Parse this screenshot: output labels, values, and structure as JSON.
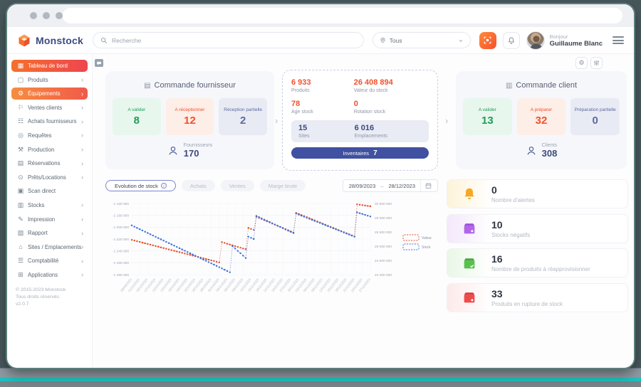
{
  "header": {
    "search_placeholder": "Recherche",
    "site_filter_value": "Tous",
    "greeting": "Bonjour",
    "user_name": "Guillaume Blanc",
    "logo_text": "Monstock"
  },
  "sidebar": {
    "items": [
      {
        "label": "Tableau de bord",
        "icon": "▦"
      },
      {
        "label": "Produits",
        "icon": "▢"
      },
      {
        "label": "Équipements",
        "icon": "⚙"
      },
      {
        "label": "Ventes clients",
        "icon": "⚐"
      },
      {
        "label": "Achats fournisseurs",
        "icon": "☷"
      },
      {
        "label": "Requêtes",
        "icon": "◎"
      },
      {
        "label": "Production",
        "icon": "⚒"
      },
      {
        "label": "Réservations",
        "icon": "▤"
      },
      {
        "label": "Prêts/Locations",
        "icon": "⊙"
      },
      {
        "label": "Scan direct",
        "icon": "▣"
      },
      {
        "label": "Stocks",
        "icon": "▥"
      },
      {
        "label": "Impression",
        "icon": "✎"
      },
      {
        "label": "Rapport",
        "icon": "▧"
      },
      {
        "label": "Sites / Emplacements",
        "icon": "⌂"
      },
      {
        "label": "Comptabilité",
        "icon": "☰"
      },
      {
        "label": "Applications",
        "icon": "⊞"
      }
    ],
    "footer_lines": [
      "© 2015-2023 Monstock",
      "Tous droits réservés.",
      "v2.0.7"
    ]
  },
  "overview": {
    "supplier_card": {
      "title": "Commande fournisseur",
      "stats": [
        {
          "label": "A valider",
          "value": "8"
        },
        {
          "label": "A réceptionner",
          "value": "12"
        },
        {
          "label": "Réception partielle",
          "value": "2"
        }
      ],
      "footer_label": "Fournisseurs",
      "footer_value": "170"
    },
    "summary_card": {
      "stats": [
        {
          "value": "6 933",
          "label": "Produits"
        },
        {
          "value": "26 408 894",
          "label": "Valeur du stock"
        },
        {
          "value": "78",
          "label": "Age stock"
        },
        {
          "value": "0",
          "label": "Rotation stock"
        }
      ],
      "band": [
        {
          "value": "15",
          "label": "Sites"
        },
        {
          "value": "6 016",
          "label": "Emplacements"
        }
      ],
      "button": {
        "label": "Inventaires",
        "value": "7"
      }
    },
    "client_card": {
      "title": "Commande client",
      "stats": [
        {
          "label": "A valider",
          "value": "13"
        },
        {
          "label": "A préparer",
          "value": "32"
        },
        {
          "label": "Préparation partielle",
          "value": "0"
        }
      ],
      "footer_label": "Clients",
      "footer_value": "308"
    }
  },
  "chart_panel": {
    "tabs": [
      "Evolution de stock",
      "Achats",
      "Ventes",
      "Marge brute"
    ],
    "date_from": "28/09/2023",
    "date_to": "28/12/2023"
  },
  "chart_data": {
    "type": "line",
    "title": "Evolution de stock",
    "days": 90,
    "label_every": 3,
    "x_labels": [
      "28/09/2023",
      "01/10/2023",
      "04/10/2023",
      "07/10/2023",
      "10/10/2023",
      "13/10/2023",
      "16/10/2023",
      "19/10/2023",
      "22/10/2023",
      "25/10/2023",
      "28/10/2023",
      "31/10/2023",
      "03/11/2023",
      "06/11/2023",
      "09/11/2023",
      "12/11/2023",
      "15/11/2023",
      "18/11/2023",
      "21/11/2023",
      "24/11/2023",
      "27/11/2023",
      "30/11/2023",
      "03/12/2023",
      "06/12/2023",
      "09/12/2023",
      "12/12/2023",
      "15/12/2023",
      "18/12/2023",
      "21/12/2023",
      "24/12/2023",
      "27/12/2023"
    ],
    "left_axis": {
      "ticks": [
        "-1 160 000",
        "-1 180 000",
        "-1 200 000",
        "-1 220 000",
        "-1 240 000",
        "-1 260 000",
        "-1 280 000"
      ],
      "range": [
        -1160000,
        -1280000
      ]
    },
    "right_axis": {
      "ticks": [
        "26 500 000",
        "26 000 000",
        "25 500 000",
        "25 000 000",
        "24 500 000",
        "24 000 000"
      ],
      "range": [
        26500000,
        24000000
      ]
    },
    "series": [
      {
        "name": "Valeur",
        "color": "#e4502e",
        "axis": "right",
        "anchors": [
          [
            0,
            25220000
          ],
          [
            33,
            24430000
          ],
          [
            34,
            25140000
          ],
          [
            43,
            24890000
          ],
          [
            44,
            25640000
          ],
          [
            46,
            25570000
          ],
          [
            47,
            26030000
          ],
          [
            61,
            25480000
          ],
          [
            62,
            26170000
          ],
          [
            84,
            25340000
          ],
          [
            85,
            26470000
          ],
          [
            90,
            26400000
          ]
        ]
      },
      {
        "name": "Stock",
        "color": "#3a6fd8",
        "axis": "left",
        "anchors": [
          [
            0,
            -1197000
          ],
          [
            37,
            -1276000
          ],
          [
            38,
            -1232000
          ],
          [
            43,
            -1252000
          ],
          [
            44,
            -1216000
          ],
          [
            46,
            -1220000
          ],
          [
            47,
            -1181000
          ],
          [
            61,
            -1210000
          ],
          [
            62,
            -1177000
          ],
          [
            84,
            -1216000
          ],
          [
            85,
            -1175000
          ],
          [
            90,
            -1182000
          ]
        ]
      }
    ],
    "legend_position": "right"
  },
  "alerts": [
    {
      "value": "0",
      "label": "Nombre d'alertes",
      "icon": "bell-icon"
    },
    {
      "value": "10",
      "label": "Stocks négatifs",
      "icon": "box-purple-icon"
    },
    {
      "value": "16",
      "label": "Nombre de produits à réapprovisionner",
      "icon": "box-green-icon"
    },
    {
      "value": "33",
      "label": "Produits en rupture de stock",
      "icon": "box-red-icon"
    }
  ],
  "colors": {
    "accent_orange": "#f4702c",
    "accent_red": "#ee4550",
    "green": "#1f9d55",
    "stat_red": "#f4502c",
    "slate": "#5d6a9e",
    "navy": "#3f51a0",
    "valeur_series": "#e4502e",
    "stock_series": "#3a6fd8",
    "teal_stripe": "#1ec0bf"
  }
}
